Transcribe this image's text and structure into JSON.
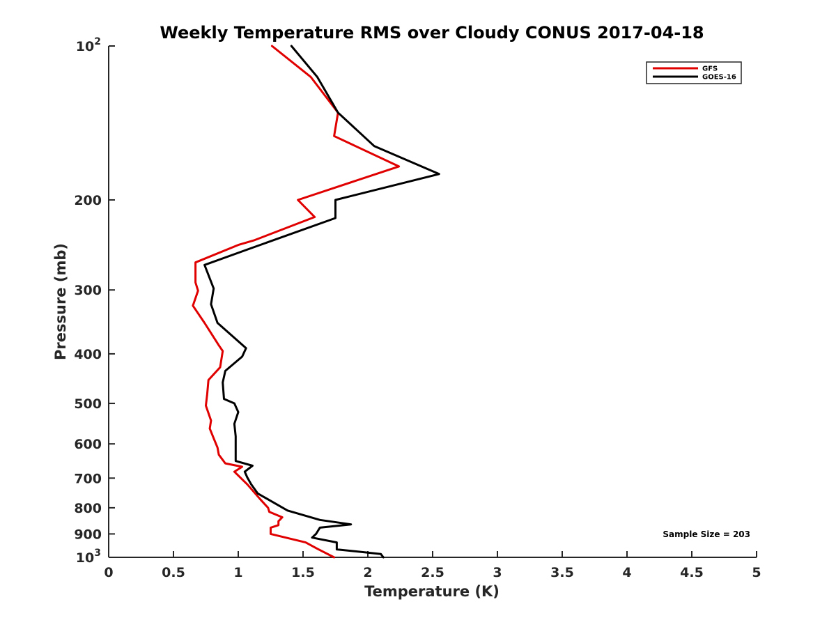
{
  "chart_data": {
    "type": "line",
    "title": "Weekly Temperature RMS over Cloudy CONUS 2017-04-18",
    "xlabel": "Temperature (K)",
    "ylabel": "Pressure (mb)",
    "xlim": [
      0,
      5
    ],
    "ylim": [
      100,
      1000
    ],
    "y_scale": "log",
    "y_reversed": true,
    "x_ticks": [
      {
        "value": 0,
        "label": "0"
      },
      {
        "value": 0.5,
        "label": "0.5"
      },
      {
        "value": 1,
        "label": "1"
      },
      {
        "value": 1.5,
        "label": "1.5"
      },
      {
        "value": 2,
        "label": "2"
      },
      {
        "value": 2.5,
        "label": "2.5"
      },
      {
        "value": 3,
        "label": "3"
      },
      {
        "value": 3.5,
        "label": "3.5"
      },
      {
        "value": 4,
        "label": "4"
      },
      {
        "value": 4.5,
        "label": "4.5"
      },
      {
        "value": 5,
        "label": "5"
      }
    ],
    "y_ticks": [
      {
        "value": 100,
        "base": "10",
        "exp": "2"
      },
      {
        "value": 200,
        "base": "200",
        "exp": ""
      },
      {
        "value": 300,
        "base": "300",
        "exp": ""
      },
      {
        "value": 400,
        "base": "400",
        "exp": ""
      },
      {
        "value": 500,
        "base": "500",
        "exp": ""
      },
      {
        "value": 600,
        "base": "600",
        "exp": ""
      },
      {
        "value": 700,
        "base": "700",
        "exp": ""
      },
      {
        "value": 800,
        "base": "800",
        "exp": ""
      },
      {
        "value": 900,
        "base": "900",
        "exp": ""
      },
      {
        "value": 1000,
        "base": "10",
        "exp": "3"
      }
    ],
    "grid": false,
    "legend_position": "top-right",
    "series": [
      {
        "name": "GFS",
        "color": "#e00000",
        "points": [
          [
            1.26,
            100
          ],
          [
            1.56,
            115
          ],
          [
            1.77,
            135
          ],
          [
            1.74,
            150
          ],
          [
            2.24,
            172
          ],
          [
            1.46,
            200
          ],
          [
            1.59,
            216
          ],
          [
            1.12,
            240
          ],
          [
            1.0,
            245
          ],
          [
            0.67,
            265
          ],
          [
            0.67,
            290
          ],
          [
            0.69,
            301
          ],
          [
            0.65,
            322
          ],
          [
            0.74,
            348
          ],
          [
            0.85,
            385
          ],
          [
            0.88,
            395
          ],
          [
            0.86,
            425
          ],
          [
            0.77,
            450
          ],
          [
            0.76,
            480
          ],
          [
            0.75,
            505
          ],
          [
            0.79,
            540
          ],
          [
            0.78,
            560
          ],
          [
            0.81,
            585
          ],
          [
            0.84,
            610
          ],
          [
            0.85,
            630
          ],
          [
            0.9,
            655
          ],
          [
            1.03,
            665
          ],
          [
            0.97,
            680
          ],
          [
            1.07,
            720
          ],
          [
            1.17,
            770
          ],
          [
            1.23,
            800
          ],
          [
            1.24,
            815
          ],
          [
            1.34,
            835
          ],
          [
            1.31,
            850
          ],
          [
            1.31,
            865
          ],
          [
            1.25,
            875
          ],
          [
            1.25,
            900
          ],
          [
            1.52,
            935
          ],
          [
            1.61,
            962
          ],
          [
            1.74,
            1000
          ]
        ]
      },
      {
        "name": "GOES-16",
        "color": "#000000",
        "points": [
          [
            1.41,
            100
          ],
          [
            1.61,
            115
          ],
          [
            1.77,
            135
          ],
          [
            2.05,
            157
          ],
          [
            2.55,
            178
          ],
          [
            1.75,
            200
          ],
          [
            1.75,
            217
          ],
          [
            1.11,
            248
          ],
          [
            0.74,
            268
          ],
          [
            0.81,
            298
          ],
          [
            0.79,
            320
          ],
          [
            0.84,
            348
          ],
          [
            1.06,
            390
          ],
          [
            1.03,
            405
          ],
          [
            0.9,
            432
          ],
          [
            0.88,
            455
          ],
          [
            0.89,
            490
          ],
          [
            0.97,
            500
          ],
          [
            1.0,
            520
          ],
          [
            0.97,
            548
          ],
          [
            0.98,
            580
          ],
          [
            0.98,
            610
          ],
          [
            0.98,
            640
          ],
          [
            0.98,
            648
          ],
          [
            1.11,
            662
          ],
          [
            1.05,
            680
          ],
          [
            1.07,
            698
          ],
          [
            1.1,
            720
          ],
          [
            1.15,
            750
          ],
          [
            1.38,
            810
          ],
          [
            1.63,
            845
          ],
          [
            1.87,
            862
          ],
          [
            1.63,
            875
          ],
          [
            1.6,
            900
          ],
          [
            1.57,
            915
          ],
          [
            1.76,
            935
          ],
          [
            1.76,
            965
          ],
          [
            2.1,
            985
          ],
          [
            2.12,
            1000
          ]
        ]
      }
    ],
    "annotation": "Sample Size = 203"
  }
}
